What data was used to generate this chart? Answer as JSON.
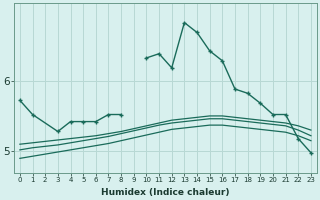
{
  "xlabel": "Humidex (Indice chaleur)",
  "color": "#1a6b5a",
  "bg_color": "#d8f0ee",
  "grid_color": "#b8d8d4",
  "ylim": [
    4.7,
    7.1
  ],
  "yticks": [
    5,
    6
  ],
  "xlim": [
    -0.5,
    23.5
  ],
  "x_jagged1": [
    0,
    1,
    3,
    4,
    5,
    6,
    7,
    8
  ],
  "y_jagged1": [
    5.72,
    5.52,
    5.28,
    5.42,
    5.42,
    5.42,
    5.52,
    5.52
  ],
  "x_jagged2": [
    10,
    11,
    12,
    13,
    14,
    15,
    16,
    17,
    18,
    19,
    20,
    21,
    22,
    23
  ],
  "y_jagged2": [
    6.32,
    6.38,
    6.18,
    6.82,
    6.68,
    6.42,
    6.28,
    5.88,
    5.82,
    5.68,
    5.52,
    5.52,
    5.18,
    4.98
  ],
  "x_smooth1": [
    0,
    1,
    2,
    3,
    4,
    5,
    6,
    7,
    8,
    9,
    10,
    11,
    12,
    13,
    14,
    15,
    16,
    17,
    18,
    19,
    20,
    21,
    22,
    23
  ],
  "y_smooth1": [
    5.1,
    5.12,
    5.14,
    5.16,
    5.18,
    5.2,
    5.22,
    5.25,
    5.28,
    5.32,
    5.36,
    5.4,
    5.44,
    5.46,
    5.48,
    5.5,
    5.5,
    5.48,
    5.46,
    5.44,
    5.42,
    5.4,
    5.36,
    5.3
  ],
  "y_smooth2": [
    5.02,
    5.05,
    5.07,
    5.09,
    5.12,
    5.15,
    5.18,
    5.21,
    5.25,
    5.29,
    5.33,
    5.37,
    5.4,
    5.42,
    5.44,
    5.46,
    5.46,
    5.44,
    5.42,
    5.4,
    5.38,
    5.36,
    5.3,
    5.22
  ],
  "y_smooth3": [
    4.9,
    4.93,
    4.96,
    4.99,
    5.02,
    5.05,
    5.08,
    5.11,
    5.15,
    5.19,
    5.23,
    5.27,
    5.31,
    5.33,
    5.35,
    5.37,
    5.37,
    5.35,
    5.33,
    5.31,
    5.29,
    5.27,
    5.22,
    5.15
  ]
}
